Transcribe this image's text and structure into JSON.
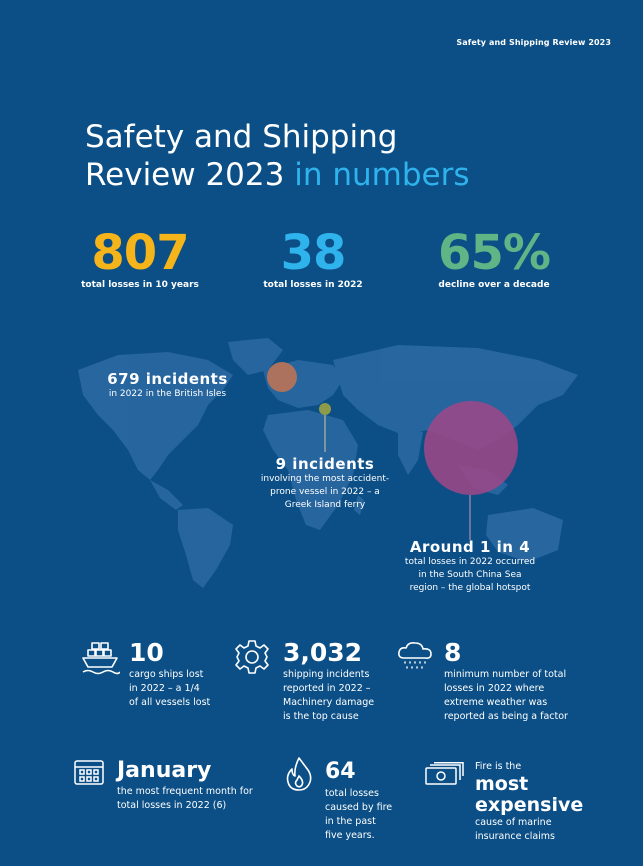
{
  "header": {
    "tag": "Safety and Shipping Review 2023"
  },
  "title": {
    "line1": "Safety and Shipping",
    "line2_main": "Review 2023",
    "line2_highlight": "in numbers"
  },
  "headline_stats": [
    {
      "value": "807",
      "label": "total losses in 10 years",
      "color": "#f5b41a"
    },
    {
      "value": "38",
      "label": "total losses in 2022",
      "color": "#2fb3ec"
    },
    {
      "value": "65%",
      "label": "decline over a decade",
      "color": "#5fb585"
    }
  ],
  "map_callouts": {
    "british_isles": {
      "heading": "679 incidents",
      "text": "in 2022 in the British Isles"
    },
    "greek_ferry": {
      "heading": "9 incidents",
      "line1": "involving the most accident-",
      "line2": "prone vessel in 2022 – a",
      "line3": "Greek Island ferry"
    },
    "south_china_sea": {
      "heading": "Around 1 in 4",
      "line1": "total losses in 2022 occurred",
      "line2": "in the South China Sea",
      "line3": "region – the global hotspot"
    }
  },
  "stats": {
    "cargo": {
      "value": "10",
      "line1": "cargo ships lost",
      "line2": "in 2022 – a 1/4",
      "line3": "of all vessels lost",
      "icon": "cargo-ship-icon"
    },
    "incidents": {
      "value": "3,032",
      "line1": "shipping incidents",
      "line2": "reported in 2022 –",
      "line3": "Machinery damage",
      "line4": "is the top cause",
      "icon": "gear-icon"
    },
    "weather": {
      "value": "8",
      "line1": "minimum number of total",
      "line2": "losses in 2022 where",
      "line3": "extreme weather was",
      "line4": "reported as being a factor",
      "icon": "storm-cloud-icon"
    },
    "january": {
      "value": "January",
      "line1": "the most frequent month for",
      "line2": "total losses in 2022 (6)",
      "icon": "calendar-icon"
    },
    "fire": {
      "value": "64",
      "line1": "total losses",
      "line2": "caused by fire",
      "line3": "in the past",
      "line4": "five years.",
      "icon": "flame-icon"
    },
    "expensive": {
      "intro": "Fire is the",
      "line_a": "most",
      "line_b": "expensive",
      "line1": "cause of marine",
      "line2": "insurance claims",
      "icon": "banknotes-icon"
    }
  }
}
